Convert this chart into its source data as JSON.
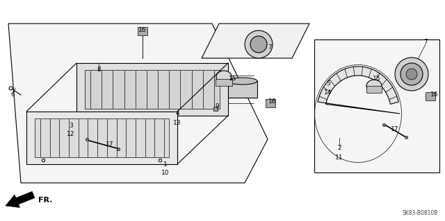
{
  "bg_color": "#ffffff",
  "line_color": "#000000",
  "diagram_code": "SK83-B0810B",
  "fig_width": 6.4,
  "fig_height": 3.19,
  "labels": [
    [
      "16",
      2.05,
      2.75
    ],
    [
      "8",
      1.42,
      2.18
    ],
    [
      "6",
      0.18,
      1.82
    ],
    [
      "3",
      1.02,
      1.38
    ],
    [
      "12",
      1.02,
      1.25
    ],
    [
      "17",
      1.58,
      1.1
    ],
    [
      "4",
      2.55,
      1.55
    ],
    [
      "13",
      2.55,
      1.42
    ],
    [
      "1",
      2.38,
      0.82
    ],
    [
      "10",
      2.38,
      0.7
    ],
    [
      "9",
      3.12,
      1.65
    ],
    [
      "15",
      3.35,
      2.05
    ],
    [
      "7",
      3.88,
      2.5
    ],
    [
      "16",
      3.92,
      1.72
    ],
    [
      "2",
      4.88,
      1.05
    ],
    [
      "11",
      4.88,
      0.92
    ],
    [
      "5",
      4.72,
      1.98
    ],
    [
      "14",
      4.72,
      1.85
    ],
    [
      "15",
      5.42,
      2.05
    ],
    [
      "17",
      5.68,
      1.32
    ],
    [
      "7",
      6.12,
      2.58
    ],
    [
      "16",
      6.25,
      1.82
    ]
  ]
}
